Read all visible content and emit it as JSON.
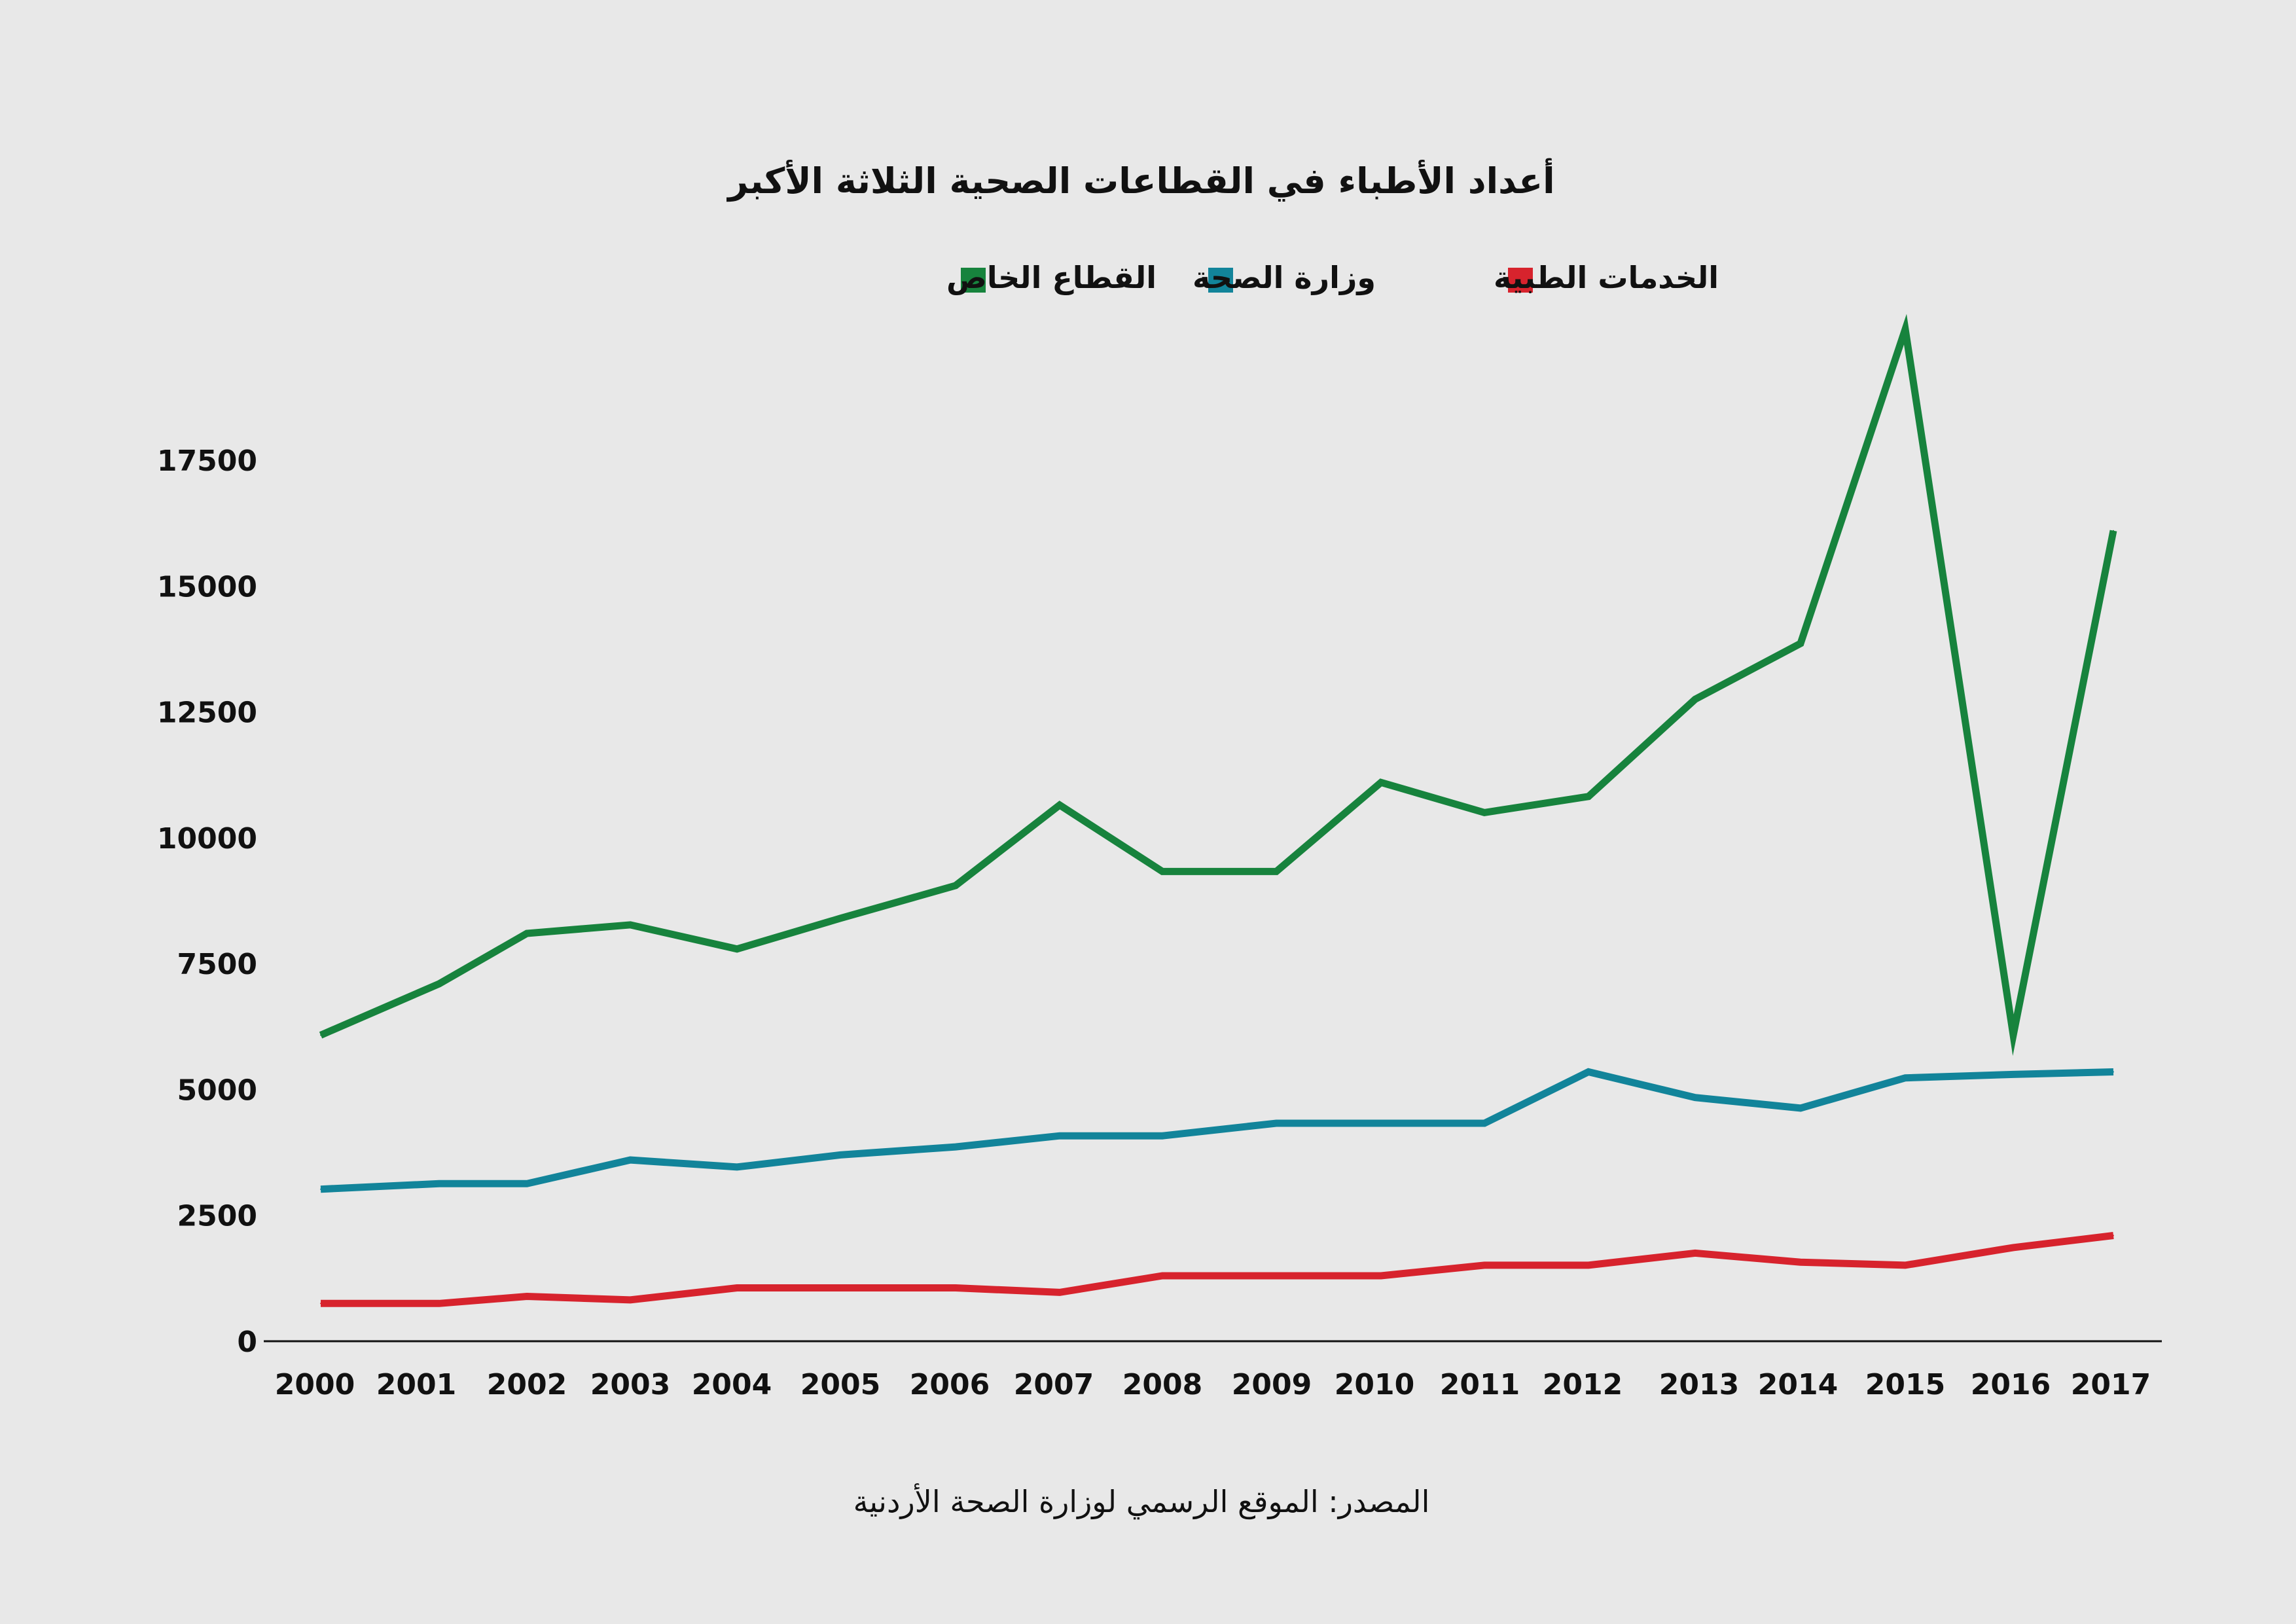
{
  "chart_data": {
    "type": "line",
    "title": "أعداد الأطباء في القطاعات الصحية الثلاثة الأكبر",
    "source": "المصدر: الموقع الرسمي لوزارة الصحة الأردنية",
    "x": [
      2000,
      2001,
      2002,
      2003,
      2004,
      2005,
      2006,
      2007,
      2008,
      2009,
      2010,
      2011,
      2012,
      2013,
      2014,
      2015,
      2016,
      2017
    ],
    "ylim": [
      0,
      17500
    ],
    "yticks": [
      0,
      2500,
      5000,
      7500,
      10000,
      12500,
      15000,
      17500
    ],
    "grid": false,
    "legend_position": "top-center",
    "series": [
      {
        "name": "الخدمات الطبية",
        "color": "#d7232d",
        "values": [
          750,
          750,
          890,
          820,
          1060,
          1060,
          1060,
          970,
          1300,
          1300,
          1300,
          1510,
          1510,
          1750,
          1570,
          1510,
          1860,
          2100
        ]
      },
      {
        "name": "وزارة الصحة",
        "color": "#12849a",
        "values": [
          3020,
          3130,
          3130,
          3600,
          3460,
          3700,
          3860,
          4080,
          4080,
          4330,
          4330,
          4330,
          5350,
          4840,
          4630,
          5230,
          5300,
          5350
        ]
      },
      {
        "name": "القطاع الخاص",
        "color": "#17833d",
        "values": [
          6080,
          7100,
          8100,
          8270,
          7790,
          8400,
          9050,
          10650,
          9330,
          9330,
          11100,
          10500,
          10820,
          12750,
          13860,
          20100,
          6080,
          16100
        ]
      }
    ]
  }
}
